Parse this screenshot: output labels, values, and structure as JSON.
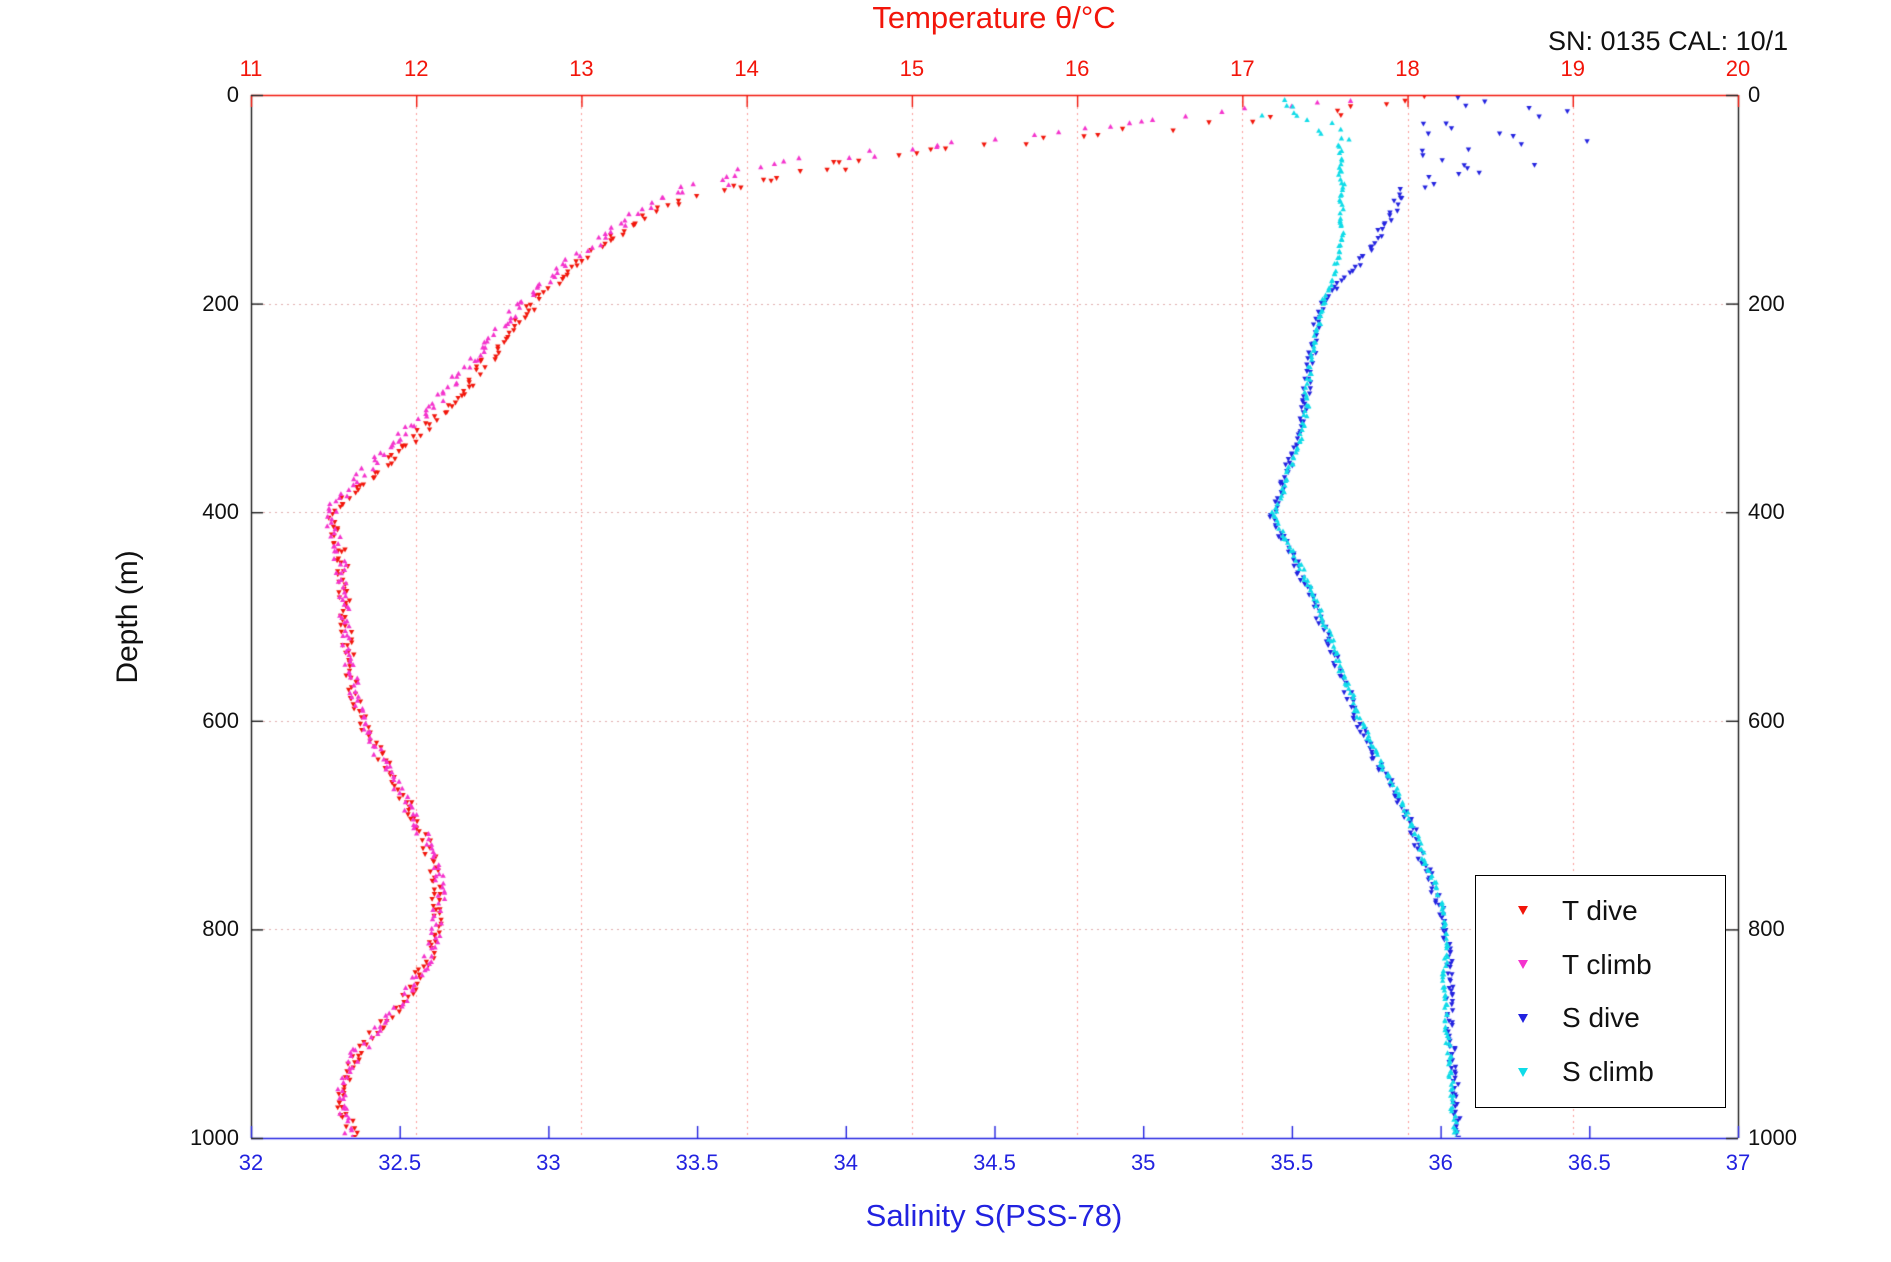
{
  "header": {
    "sn_cal": "SN: 0135  CAL: 10/1"
  },
  "chart_data": {
    "type": "scatter",
    "title": "Temperature θ/°C",
    "xlabel_bottom": "Salinity S(PSS-78)",
    "ylabel": "Depth (m)",
    "colors": {
      "red": "#f2150a",
      "magenta": "#f433cd",
      "blue": "#2222e0",
      "cyan": "#0fdce8",
      "axis_black": "#1a1a1a",
      "grid_vertical": "rgba(242,21,10,0.40)",
      "grid_horizontal": "rgba(200,110,110,0.55)",
      "background": "#ffffff"
    },
    "axes": {
      "temperature": {
        "side": "top",
        "min": 11,
        "max": 20,
        "ticks": [
          11,
          12,
          13,
          14,
          15,
          16,
          17,
          18,
          19,
          20
        ],
        "tick_labels": [
          "11",
          "12",
          "13",
          "14",
          "15",
          "16",
          "17",
          "18",
          "19",
          "20"
        ],
        "color": "#f2150a"
      },
      "salinity": {
        "side": "bottom",
        "min": 32,
        "max": 37,
        "ticks": [
          32,
          32.5,
          33,
          33.5,
          34,
          34.5,
          35,
          35.5,
          36,
          36.5,
          37
        ],
        "tick_labels": [
          "32",
          "32.5",
          "33",
          "33.5",
          "34",
          "34.5",
          "35",
          "35.5",
          "36",
          "36.5",
          "37"
        ],
        "color": "#2222e0"
      },
      "depth": {
        "min": 0,
        "max": 1000,
        "inverted": true,
        "ticks": [
          0,
          200,
          400,
          600,
          800,
          1000
        ],
        "tick_labels": [
          "0",
          "200",
          "400",
          "600",
          "800",
          "1000"
        ],
        "color": "#1a1a1a"
      }
    },
    "grid": {
      "style": "dotted",
      "vertical_at_temperature": [
        12,
        13,
        14,
        15,
        16,
        17,
        18,
        19
      ],
      "horizontal_at_depth": [
        200,
        400,
        600,
        800
      ]
    },
    "legend": {
      "position": "bottom-right",
      "entries": [
        {
          "label": "T dive",
          "color": "#f2150a"
        },
        {
          "label": "T climb",
          "color": "#f433cd"
        },
        {
          "label": "S dive",
          "color": "#2222e0"
        },
        {
          "label": "S climb",
          "color": "#0fdce8"
        }
      ]
    },
    "series": [
      {
        "name": "T dive",
        "axis": "temperature",
        "color": "#f2150a",
        "marker": "triangle-down",
        "jitter": 0.035,
        "surface_jitter": 0.12,
        "surface_depth": 95,
        "points": [
          [
            3,
            18.05
          ],
          [
            10,
            17.8
          ],
          [
            18,
            17.55
          ],
          [
            25,
            17.0
          ],
          [
            32,
            16.5
          ],
          [
            40,
            15.95
          ],
          [
            48,
            15.45
          ],
          [
            56,
            15.0
          ],
          [
            64,
            14.65
          ],
          [
            72,
            14.4
          ],
          [
            80,
            14.2
          ],
          [
            90,
            13.95
          ],
          [
            100,
            13.62
          ],
          [
            115,
            13.4
          ],
          [
            130,
            13.25
          ],
          [
            145,
            13.14
          ],
          [
            160,
            12.98
          ],
          [
            175,
            12.88
          ],
          [
            190,
            12.77
          ],
          [
            205,
            12.68
          ],
          [
            220,
            12.6
          ],
          [
            240,
            12.5
          ],
          [
            260,
            12.4
          ],
          [
            280,
            12.3
          ],
          [
            300,
            12.2
          ],
          [
            320,
            12.05
          ],
          [
            340,
            11.92
          ],
          [
            360,
            11.78
          ],
          [
            380,
            11.62
          ],
          [
            400,
            11.49
          ],
          [
            410,
            11.48
          ],
          [
            425,
            11.53
          ],
          [
            445,
            11.55
          ],
          [
            470,
            11.56
          ],
          [
            495,
            11.57
          ],
          [
            520,
            11.58
          ],
          [
            545,
            11.6
          ],
          [
            570,
            11.61
          ],
          [
            595,
            11.66
          ],
          [
            620,
            11.74
          ],
          [
            645,
            11.83
          ],
          [
            670,
            11.92
          ],
          [
            695,
            12.0
          ],
          [
            720,
            12.07
          ],
          [
            745,
            12.12
          ],
          [
            770,
            12.13
          ],
          [
            795,
            12.12
          ],
          [
            820,
            12.09
          ],
          [
            845,
            12.02
          ],
          [
            870,
            11.92
          ],
          [
            895,
            11.78
          ],
          [
            920,
            11.65
          ],
          [
            940,
            11.58
          ],
          [
            955,
            11.55
          ],
          [
            970,
            11.55
          ],
          [
            985,
            11.59
          ],
          [
            1000,
            11.62
          ]
        ]
      },
      {
        "name": "T climb",
        "axis": "temperature",
        "color": "#f433cd",
        "marker": "triangle-up",
        "jitter": 0.035,
        "surface_jitter": 0.12,
        "surface_depth": 95,
        "points": [
          [
            5,
            17.6
          ],
          [
            12,
            17.2
          ],
          [
            20,
            16.7
          ],
          [
            28,
            16.25
          ],
          [
            36,
            15.8
          ],
          [
            44,
            15.35
          ],
          [
            52,
            14.95
          ],
          [
            60,
            14.55
          ],
          [
            68,
            14.2
          ],
          [
            76,
            13.95
          ],
          [
            84,
            13.78
          ],
          [
            92,
            13.62
          ],
          [
            100,
            13.48
          ],
          [
            115,
            13.32
          ],
          [
            130,
            13.18
          ],
          [
            145,
            13.07
          ],
          [
            160,
            12.9
          ],
          [
            175,
            12.8
          ],
          [
            190,
            12.7
          ],
          [
            205,
            12.6
          ],
          [
            220,
            12.52
          ],
          [
            240,
            12.42
          ],
          [
            260,
            12.31
          ],
          [
            280,
            12.2
          ],
          [
            300,
            12.09
          ],
          [
            320,
            11.95
          ],
          [
            340,
            11.83
          ],
          [
            360,
            11.7
          ],
          [
            380,
            11.57
          ],
          [
            395,
            11.49
          ],
          [
            410,
            11.47
          ],
          [
            425,
            11.52
          ],
          [
            445,
            11.54
          ],
          [
            470,
            11.55
          ],
          [
            495,
            11.56
          ],
          [
            520,
            11.58
          ],
          [
            545,
            11.6
          ],
          [
            570,
            11.62
          ],
          [
            595,
            11.66
          ],
          [
            620,
            11.73
          ],
          [
            645,
            11.81
          ],
          [
            670,
            11.91
          ],
          [
            695,
            11.99
          ],
          [
            720,
            12.07
          ],
          [
            745,
            12.13
          ],
          [
            770,
            12.14
          ],
          [
            795,
            12.12
          ],
          [
            820,
            12.09
          ],
          [
            845,
            12.02
          ],
          [
            870,
            11.92
          ],
          [
            895,
            11.77
          ],
          [
            920,
            11.63
          ],
          [
            940,
            11.57
          ],
          [
            955,
            11.54
          ],
          [
            970,
            11.56
          ],
          [
            985,
            11.58
          ],
          [
            1000,
            11.61
          ]
        ]
      },
      {
        "name": "S dive",
        "axis": "salinity",
        "color": "#2222e0",
        "marker": "triangle-down",
        "jitter": 0.012,
        "surface_jitter": 0.12,
        "surface_depth": 90,
        "points": [
          [
            5,
            36.0
          ],
          [
            12,
            36.2
          ],
          [
            18,
            36.35
          ],
          [
            25,
            36.1
          ],
          [
            32,
            35.95
          ],
          [
            38,
            36.2
          ],
          [
            45,
            36.4
          ],
          [
            52,
            36.15
          ],
          [
            58,
            35.95
          ],
          [
            65,
            36.25
          ],
          [
            72,
            36.1
          ],
          [
            80,
            35.9
          ],
          [
            90,
            35.86
          ],
          [
            100,
            35.86
          ],
          [
            112,
            35.84
          ],
          [
            125,
            35.81
          ],
          [
            138,
            35.79
          ],
          [
            150,
            35.76
          ],
          [
            165,
            35.71
          ],
          [
            180,
            35.66
          ],
          [
            195,
            35.61
          ],
          [
            210,
            35.59
          ],
          [
            228,
            35.58
          ],
          [
            246,
            35.57
          ],
          [
            264,
            35.56
          ],
          [
            282,
            35.55
          ],
          [
            300,
            35.54
          ],
          [
            318,
            35.53
          ],
          [
            336,
            35.51
          ],
          [
            354,
            35.49
          ],
          [
            372,
            35.47
          ],
          [
            390,
            35.45
          ],
          [
            402,
            35.43
          ],
          [
            415,
            35.45
          ],
          [
            430,
            35.48
          ],
          [
            448,
            35.51
          ],
          [
            466,
            35.54
          ],
          [
            484,
            35.57
          ],
          [
            502,
            35.59
          ],
          [
            520,
            35.62
          ],
          [
            538,
            35.64
          ],
          [
            556,
            35.66
          ],
          [
            574,
            35.69
          ],
          [
            592,
            35.71
          ],
          [
            610,
            35.74
          ],
          [
            628,
            35.77
          ],
          [
            646,
            35.8
          ],
          [
            664,
            35.84
          ],
          [
            682,
            35.87
          ],
          [
            700,
            35.9
          ],
          [
            718,
            35.92
          ],
          [
            736,
            35.94
          ],
          [
            754,
            35.97
          ],
          [
            772,
            35.99
          ],
          [
            790,
            36.01
          ],
          [
            808,
            36.02
          ],
          [
            826,
            36.03
          ],
          [
            844,
            36.03
          ],
          [
            862,
            36.03
          ],
          [
            880,
            36.03
          ],
          [
            898,
            36.03
          ],
          [
            916,
            36.04
          ],
          [
            934,
            36.04
          ],
          [
            952,
            36.05
          ],
          [
            970,
            36.05
          ],
          [
            985,
            36.06
          ],
          [
            1000,
            36.06
          ]
        ]
      },
      {
        "name": "S climb",
        "axis": "salinity",
        "color": "#0fdce8",
        "marker": "triangle-up",
        "jitter": 0.007,
        "surface_jitter": 0.05,
        "surface_depth": 45,
        "points": [
          [
            5,
            35.45
          ],
          [
            12,
            35.52
          ],
          [
            18,
            35.44
          ],
          [
            25,
            35.58
          ],
          [
            32,
            35.62
          ],
          [
            40,
            35.65
          ],
          [
            50,
            35.66
          ],
          [
            62,
            35.67
          ],
          [
            74,
            35.66
          ],
          [
            86,
            35.67
          ],
          [
            98,
            35.66
          ],
          [
            110,
            35.67
          ],
          [
            122,
            35.66
          ],
          [
            134,
            35.67
          ],
          [
            146,
            35.66
          ],
          [
            158,
            35.65
          ],
          [
            170,
            35.64
          ],
          [
            182,
            35.63
          ],
          [
            194,
            35.61
          ],
          [
            208,
            35.6
          ],
          [
            226,
            35.58
          ],
          [
            244,
            35.57
          ],
          [
            262,
            35.56
          ],
          [
            280,
            35.55
          ],
          [
            298,
            35.55
          ],
          [
            316,
            35.54
          ],
          [
            334,
            35.52
          ],
          [
            352,
            35.5
          ],
          [
            370,
            35.48
          ],
          [
            388,
            35.46
          ],
          [
            400,
            35.44
          ],
          [
            414,
            35.46
          ],
          [
            430,
            35.49
          ],
          [
            448,
            35.52
          ],
          [
            466,
            35.55
          ],
          [
            484,
            35.58
          ],
          [
            502,
            35.6
          ],
          [
            520,
            35.63
          ],
          [
            538,
            35.65
          ],
          [
            556,
            35.67
          ],
          [
            574,
            35.7
          ],
          [
            592,
            35.72
          ],
          [
            610,
            35.75
          ],
          [
            628,
            35.78
          ],
          [
            646,
            35.81
          ],
          [
            664,
            35.85
          ],
          [
            682,
            35.88
          ],
          [
            700,
            35.9
          ],
          [
            718,
            35.93
          ],
          [
            736,
            35.95
          ],
          [
            754,
            35.98
          ],
          [
            772,
            36.0
          ],
          [
            790,
            36.01
          ],
          [
            808,
            36.02
          ],
          [
            826,
            36.02
          ],
          [
            844,
            36.01
          ],
          [
            862,
            36.01
          ],
          [
            880,
            36.02
          ],
          [
            898,
            36.02
          ],
          [
            916,
            36.03
          ],
          [
            934,
            36.03
          ],
          [
            952,
            36.04
          ],
          [
            970,
            36.04
          ],
          [
            985,
            36.05
          ],
          [
            1000,
            36.05
          ]
        ]
      }
    ],
    "layout_hints": {
      "grid": true,
      "legend_position": "bottom-right",
      "depth_axis_labels_both_sides": true
    }
  }
}
